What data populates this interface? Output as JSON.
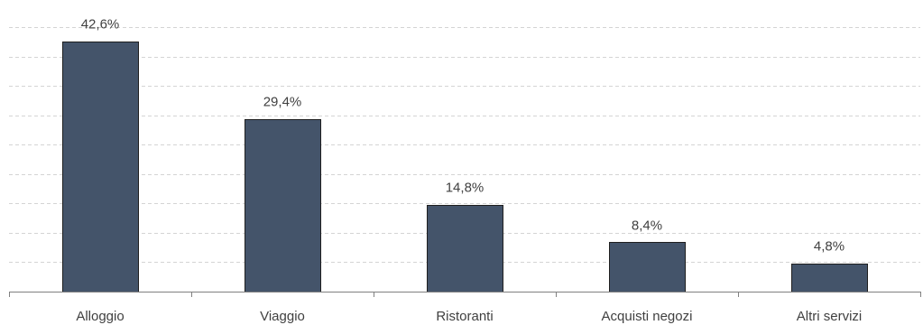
{
  "chart_data": {
    "type": "bar",
    "categories": [
      "Alloggio",
      "Viaggio",
      "Ristoranti",
      "Acquisti negozi",
      "Altri servizi"
    ],
    "values": [
      42.6,
      29.4,
      14.8,
      8.4,
      4.8
    ],
    "value_labels": [
      "42,6%",
      "29,4%",
      "14,8%",
      "8,4%",
      "4,8%"
    ],
    "title": "",
    "xlabel": "",
    "ylabel": "",
    "ylim": [
      0,
      45
    ],
    "y_tick_step": 5,
    "grid": true,
    "legend": "none",
    "colors": {
      "bar_fill": "#44546a",
      "bar_stroke": "#1f1f1f",
      "grid": "#d4d4d4",
      "axis": "#808080",
      "text": "#404040"
    }
  }
}
